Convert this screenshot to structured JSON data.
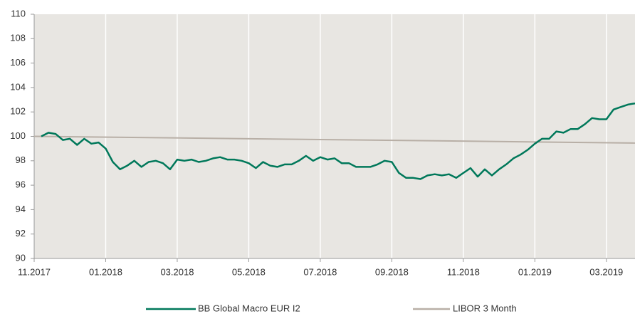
{
  "chart_data": {
    "type": "line",
    "xlim": [
      0,
      16.8
    ],
    "xticks": [
      {
        "value": 0,
        "label": "11.2017"
      },
      {
        "value": 2,
        "label": "01.2018"
      },
      {
        "value": 4,
        "label": "03.2018"
      },
      {
        "value": 6,
        "label": "05.2018"
      },
      {
        "value": 8,
        "label": "07.2018"
      },
      {
        "value": 10,
        "label": "09.2018"
      },
      {
        "value": 12,
        "label": "11.2018"
      },
      {
        "value": 14,
        "label": "01.2019"
      },
      {
        "value": 16,
        "label": "03.2019"
      }
    ],
    "ylim": [
      90,
      110
    ],
    "yticks": [
      90,
      92,
      94,
      96,
      98,
      100,
      102,
      104,
      106,
      108,
      110
    ],
    "grid": true,
    "legend": "bottom",
    "series": [
      {
        "name": "BB Global Macro EUR I2",
        "color": "#00785a",
        "x": [
          0.2,
          0.4,
          0.6,
          0.8,
          1.0,
          1.2,
          1.4,
          1.6,
          1.8,
          2.0,
          2.2,
          2.4,
          2.6,
          2.8,
          3.0,
          3.2,
          3.4,
          3.6,
          3.8,
          4.0,
          4.2,
          4.4,
          4.6,
          4.8,
          5.0,
          5.2,
          5.4,
          5.6,
          5.8,
          6.0,
          6.2,
          6.4,
          6.6,
          6.8,
          7.0,
          7.2,
          7.4,
          7.6,
          7.8,
          8.0,
          8.2,
          8.4,
          8.6,
          8.8,
          9.0,
          9.2,
          9.4,
          9.6,
          9.8,
          10.0,
          10.2,
          10.4,
          10.6,
          10.8,
          11.0,
          11.2,
          11.4,
          11.6,
          11.8,
          12.0,
          12.2,
          12.4,
          12.6,
          12.8,
          13.0,
          13.2,
          13.4,
          13.6,
          13.8,
          14.0,
          14.2,
          14.4,
          14.6,
          14.8,
          15.0,
          15.2,
          15.4,
          15.6,
          15.8,
          16.0,
          16.2,
          16.4,
          16.6,
          16.8
        ],
        "values": [
          100.0,
          100.3,
          100.2,
          99.7,
          99.8,
          99.3,
          99.8,
          99.4,
          99.5,
          99.0,
          97.9,
          97.3,
          97.6,
          98.0,
          97.5,
          97.9,
          98.0,
          97.8,
          97.3,
          98.1,
          98.0,
          98.1,
          97.9,
          98.0,
          98.2,
          98.3,
          98.1,
          98.1,
          98.0,
          97.8,
          97.4,
          97.9,
          97.6,
          97.5,
          97.7,
          97.7,
          98.0,
          98.4,
          98.0,
          98.3,
          98.1,
          98.2,
          97.8,
          97.8,
          97.5,
          97.5,
          97.5,
          97.7,
          98.0,
          97.9,
          97.0,
          96.6,
          96.6,
          96.5,
          96.8,
          96.9,
          96.8,
          96.9,
          96.6,
          97.0,
          97.4,
          96.7,
          97.3,
          96.8,
          97.3,
          97.7,
          98.2,
          98.5,
          98.9,
          99.4,
          99.8,
          99.8,
          100.4,
          100.3,
          100.6,
          100.6,
          101.0,
          101.5,
          101.4,
          101.4,
          102.2,
          102.4,
          102.6,
          102.7
        ]
      },
      {
        "name": "LIBOR 3 Month",
        "color": "#b8afa6",
        "x": [
          0,
          16.8
        ],
        "values": [
          100.0,
          99.45
        ]
      }
    ]
  }
}
